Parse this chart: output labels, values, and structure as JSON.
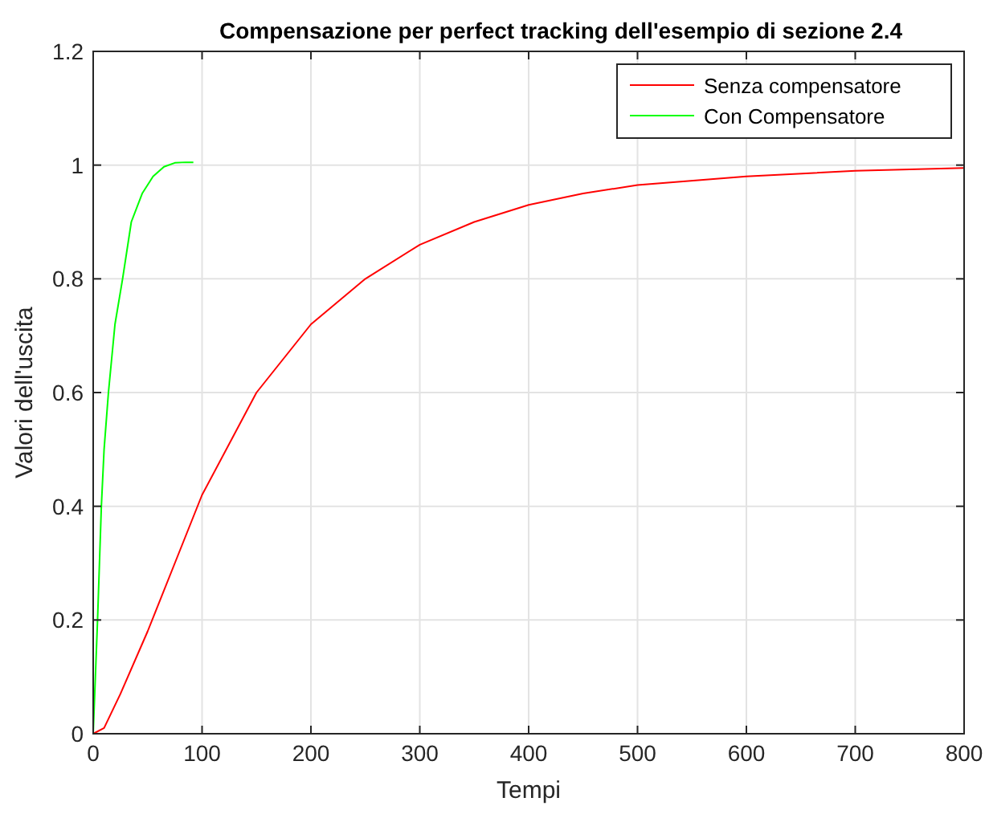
{
  "chart_data": {
    "type": "line",
    "title": "Compensazione per perfect tracking dell'esempio di sezione 2.4",
    "xlabel": "Tempi",
    "ylabel": "Valori dell'uscita",
    "xlim": [
      0,
      800
    ],
    "xticks": [
      0,
      100,
      200,
      300,
      400,
      500,
      600,
      700,
      800
    ],
    "ylim": [
      0,
      1.2
    ],
    "yticks": [
      0,
      0.2,
      0.4,
      0.6,
      0.8,
      1,
      1.2
    ],
    "grid": true,
    "legend": "top right",
    "line_style": "solid",
    "marker": "none",
    "series": [
      {
        "name": "Senza compensatore",
        "color": "#ff0000",
        "x": [
          0,
          10,
          25,
          50,
          75,
          100,
          150,
          200,
          250,
          300,
          350,
          400,
          450,
          500,
          600,
          700,
          800
        ],
        "values": [
          0,
          0.01,
          0.07,
          0.18,
          0.3,
          0.42,
          0.6,
          0.72,
          0.8,
          0.86,
          0.9,
          0.93,
          0.95,
          0.965,
          0.98,
          0.99,
          0.995
        ]
      },
      {
        "name": "Con Compensatore",
        "color": "#00ff00",
        "x": [
          0,
          2,
          4,
          7.5,
          10,
          14,
          20,
          27,
          35,
          45,
          55,
          65,
          75,
          85,
          92
        ],
        "values": [
          0,
          0.1,
          0.2,
          0.4,
          0.5,
          0.6,
          0.72,
          0.8,
          0.9,
          0.95,
          0.98,
          0.997,
          1.004,
          1.005,
          1.005
        ]
      }
    ]
  }
}
